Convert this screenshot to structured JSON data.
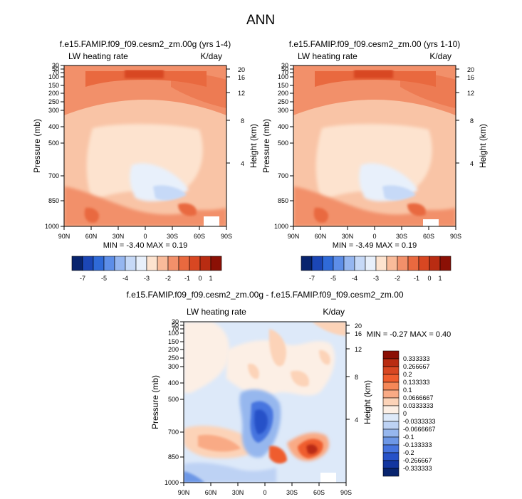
{
  "figure_title": "ANN",
  "chart_data": [
    {
      "type": "contour",
      "title": "f.e15.FAMIP.f09_f09.cesm2_zm.00g (yrs 1-4)",
      "left_label": "LW heating rate",
      "right_label": "K/day",
      "ylabel": "Pressure (mb)",
      "ylabel_right": "Height (km)",
      "x_ticks": [
        "90N",
        "60N",
        "30N",
        "0",
        "30S",
        "60S",
        "90S"
      ],
      "y_ticks": [
        "30",
        "50",
        "70",
        "100",
        "150",
        "200",
        "250",
        "300",
        "400",
        "500",
        "700",
        "850",
        "1000"
      ],
      "y_ticks_right": [
        "20",
        "16",
        "12",
        "8",
        "4"
      ],
      "ylim": [
        30,
        1000
      ],
      "stats": "MIN =  -3.40   MAX =   0.19",
      "colorbar_labels": [
        "-7",
        "-5",
        "-4",
        "-3",
        "-2",
        "-1",
        "0",
        "1"
      ]
    },
    {
      "type": "contour",
      "title": "f.e15.FAMIP.f09_f09.cesm2_zm.00 (yrs 1-10)",
      "left_label": "LW heating rate",
      "right_label": "K/day",
      "ylabel": "Pressure (mb)",
      "ylabel_right": "Height (km)",
      "x_ticks": [
        "90N",
        "60N",
        "30N",
        "0",
        "30S",
        "60S",
        "90S"
      ],
      "y_ticks": [
        "30",
        "50",
        "70",
        "100",
        "150",
        "200",
        "250",
        "300",
        "400",
        "500",
        "700",
        "850",
        "1000"
      ],
      "y_ticks_right": [
        "20",
        "16",
        "12",
        "8",
        "4"
      ],
      "ylim": [
        30,
        1000
      ],
      "stats": "MIN =  -3.49   MAX =   0.19",
      "colorbar_labels": [
        "-7",
        "-5",
        "-4",
        "-3",
        "-2",
        "-1",
        "0",
        "1"
      ]
    },
    {
      "type": "contour",
      "title": "f.e15.FAMIP.f09_f09.cesm2_zm.00g - f.e15.FAMIP.f09_f09.cesm2_zm.00",
      "left_label": "LW heating rate",
      "right_label": "K/day",
      "ylabel": "Pressure (mb)",
      "ylabel_right": "Height (km)",
      "x_ticks": [
        "90N",
        "60N",
        "30N",
        "0",
        "30S",
        "60S",
        "90S"
      ],
      "y_ticks": [
        "30",
        "50",
        "70",
        "100",
        "150",
        "200",
        "250",
        "300",
        "400",
        "500",
        "700",
        "850",
        "1000"
      ],
      "y_ticks_right": [
        "20",
        "16",
        "12",
        "8",
        "4"
      ],
      "ylim": [
        30,
        1000
      ],
      "stats": "MIN =  -0.27   MAX =   0.40",
      "colorbar_labels": [
        "0.333333",
        "0.266667",
        "0.2",
        "0.133333",
        "0.1",
        "0.0666667",
        "0.0333333",
        "0",
        "-0.0333333",
        "-0.0666667",
        "-0.1",
        "-0.133333",
        "-0.2",
        "-0.266667",
        "-0.333333"
      ]
    }
  ],
  "colors": {
    "abs_scale": [
      "#08246e",
      "#1b46b6",
      "#2f6ad8",
      "#5d8ee8",
      "#95b6f0",
      "#c6d9f7",
      "#e8f0fb",
      "#fde3cf",
      "#f9bb9a",
      "#f2906a",
      "#e9693f",
      "#d84722",
      "#b92c12",
      "#8b1005"
    ],
    "diff_scale": [
      "#8b1005",
      "#b92c12",
      "#d84722",
      "#ef5d2e",
      "#f58858",
      "#f9aa85",
      "#fcd3b8",
      "#fcefe5",
      "#dde9f9",
      "#bdd2f4",
      "#96b7ee",
      "#6d97e6",
      "#4674df",
      "#2651c8",
      "#1336a0",
      "#08246e"
    ],
    "plot_base": "#fde6d2"
  }
}
